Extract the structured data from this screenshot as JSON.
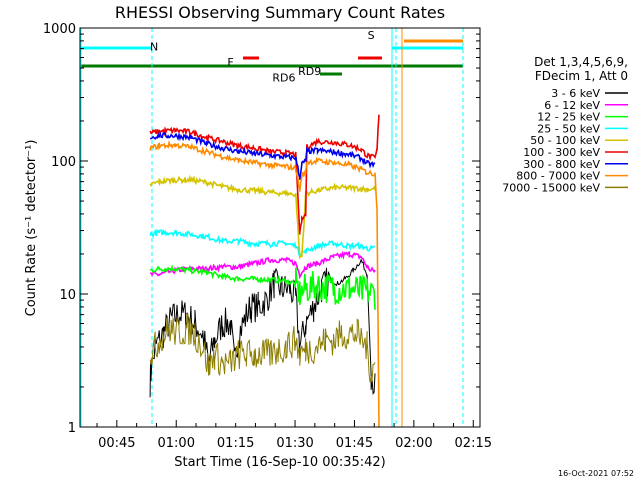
{
  "chart_data": {
    "type": "line",
    "title": "RHESSI Observing Summary Count Rates",
    "xlabel": "Start Time (16-Sep-10 00:35:42)",
    "ylabel": "Count Rate (s⁻¹ detector⁻¹)",
    "x_unit": "minutes since 00:35:42",
    "xlim": [
      0,
      101
    ],
    "ylim": [
      1,
      1000
    ],
    "y_scale": "log",
    "grid": false,
    "legend_position": "right",
    "x_ticks": [
      {
        "label": "00:45",
        "x": 9.3
      },
      {
        "label": "01:00",
        "x": 24.3
      },
      {
        "label": "01:15",
        "x": 39.3
      },
      {
        "label": "01:30",
        "x": 54.3
      },
      {
        "label": "01:45",
        "x": 69.3
      },
      {
        "label": "02:00",
        "x": 84.3
      },
      {
        "label": "02:15",
        "x": 99.3
      }
    ],
    "y_ticks": [
      {
        "label": "1",
        "value": 1
      },
      {
        "label": "10",
        "value": 10
      },
      {
        "label": "100",
        "value": 100
      },
      {
        "label": "1000",
        "value": 1000
      }
    ],
    "legend_header": [
      "Det 1,3,4,5,6,9,",
      "FDecim 1, Att 0"
    ],
    "series": [
      {
        "name": "3 - 6 keV",
        "color": "#000000",
        "points": [
          [
            17.7,
            2.2
          ],
          [
            17.9,
            2.6
          ],
          [
            19,
            4
          ],
          [
            21,
            5
          ],
          [
            23,
            6.5
          ],
          [
            25,
            7
          ],
          [
            27,
            7
          ],
          [
            29,
            6
          ],
          [
            31,
            5
          ],
          [
            32.5,
            3
          ],
          [
            34,
            4.5
          ],
          [
            36,
            6
          ],
          [
            38,
            6
          ],
          [
            39,
            3
          ],
          [
            40,
            5
          ],
          [
            43,
            8
          ],
          [
            45,
            8
          ],
          [
            47,
            9
          ],
          [
            49,
            12
          ],
          [
            51,
            11
          ],
          [
            53,
            11
          ],
          [
            54.5,
            9
          ],
          [
            55.5,
            4
          ],
          [
            57,
            6
          ],
          [
            59,
            8
          ],
          [
            61,
            11
          ],
          [
            63,
            13
          ],
          [
            65,
            12
          ],
          [
            67,
            13
          ],
          [
            69,
            15
          ],
          [
            71,
            18
          ],
          [
            72.5,
            14
          ],
          [
            73.5,
            2.5
          ],
          [
            74.5,
            2
          ]
        ]
      },
      {
        "name": "6 - 12 keV",
        "color": "#ff00ff",
        "points": [
          [
            17.7,
            14
          ],
          [
            20,
            14
          ],
          [
            24,
            15
          ],
          [
            28,
            15.5
          ],
          [
            32,
            15.5
          ],
          [
            36,
            16
          ],
          [
            40,
            16
          ],
          [
            44,
            17
          ],
          [
            48,
            18
          ],
          [
            52,
            18
          ],
          [
            54.5,
            17
          ],
          [
            55.5,
            14
          ],
          [
            57,
            16
          ],
          [
            60,
            17
          ],
          [
            64,
            19
          ],
          [
            68,
            20
          ],
          [
            71,
            19
          ],
          [
            72.5,
            16
          ],
          [
            73.5,
            15
          ],
          [
            74.5,
            15
          ]
        ]
      },
      {
        "name": "12 - 25 keV",
        "color": "#00ff00",
        "points": [
          [
            17.7,
            15
          ],
          [
            20,
            15.5
          ],
          [
            24,
            15.5
          ],
          [
            28,
            15
          ],
          [
            32,
            14.5
          ],
          [
            36,
            13.5
          ],
          [
            40,
            13
          ],
          [
            44,
            13
          ],
          [
            48,
            12.8
          ],
          [
            52,
            12.5
          ],
          [
            54.5,
            12
          ],
          [
            55.5,
            10
          ],
          [
            57,
            11
          ],
          [
            60,
            11.5
          ],
          [
            64,
            11
          ],
          [
            68,
            11
          ],
          [
            71,
            10.5
          ],
          [
            72.5,
            10.5
          ],
          [
            74.5,
            10
          ]
        ]
      },
      {
        "name": "25 - 50 keV",
        "color": "#00ffff",
        "points": [
          [
            17.7,
            28
          ],
          [
            20,
            29
          ],
          [
            24,
            29
          ],
          [
            28,
            28
          ],
          [
            32,
            27
          ],
          [
            36,
            25
          ],
          [
            40,
            25
          ],
          [
            44,
            24
          ],
          [
            48,
            24
          ],
          [
            52,
            24
          ],
          [
            54.5,
            23
          ],
          [
            55.5,
            20
          ],
          [
            57,
            21
          ],
          [
            60,
            23
          ],
          [
            64,
            24
          ],
          [
            68,
            23
          ],
          [
            71,
            23
          ],
          [
            72.5,
            22
          ],
          [
            74.5,
            22
          ]
        ]
      },
      {
        "name": "50 - 100 keV",
        "color": "#d4c400",
        "points": [
          [
            17.7,
            66
          ],
          [
            20,
            70
          ],
          [
            24,
            72
          ],
          [
            28,
            72
          ],
          [
            32,
            69
          ],
          [
            36,
            64
          ],
          [
            40,
            61
          ],
          [
            44,
            60
          ],
          [
            48,
            58
          ],
          [
            52,
            57
          ],
          [
            54.5,
            56
          ],
          [
            55.5,
            19
          ],
          [
            56,
            19
          ],
          [
            57,
            57
          ],
          [
            60,
            60
          ],
          [
            64,
            63
          ],
          [
            68,
            63
          ],
          [
            71,
            62
          ],
          [
            72.5,
            61
          ],
          [
            74.5,
            62
          ]
        ]
      },
      {
        "name": "100 - 300 keV",
        "color": "#ee0000",
        "points": [
          [
            17.7,
            162
          ],
          [
            20,
            167
          ],
          [
            24,
            170
          ],
          [
            28,
            165
          ],
          [
            32,
            150
          ],
          [
            36,
            140
          ],
          [
            40,
            130
          ],
          [
            44,
            125
          ],
          [
            48,
            118
          ],
          [
            52,
            115
          ],
          [
            54.5,
            112
          ],
          [
            55.5,
            28
          ],
          [
            56,
            36
          ],
          [
            57,
            40
          ],
          [
            57.3,
            128
          ],
          [
            60,
            140
          ],
          [
            64,
            138
          ],
          [
            68,
            132
          ],
          [
            71,
            122
          ],
          [
            72.5,
            110
          ],
          [
            74.5,
            105
          ],
          [
            75,
            120
          ],
          [
            75.5,
            230
          ]
        ]
      },
      {
        "name": "300 - 800 keV",
        "color": "#0000ee",
        "points": [
          [
            17.7,
            150
          ],
          [
            20,
            155
          ],
          [
            24,
            155
          ],
          [
            28,
            150
          ],
          [
            32,
            135
          ],
          [
            36,
            125
          ],
          [
            40,
            118
          ],
          [
            44,
            114
          ],
          [
            48,
            110
          ],
          [
            52,
            107
          ],
          [
            54.5,
            105
          ],
          [
            55.5,
            75
          ],
          [
            56,
            95
          ],
          [
            57,
            100
          ],
          [
            57.3,
            118
          ],
          [
            60,
            120
          ],
          [
            64,
            117
          ],
          [
            68,
            112
          ],
          [
            71,
            105
          ],
          [
            72.5,
            96
          ],
          [
            74.5,
            93
          ]
        ]
      },
      {
        "name": "800 - 7000 keV",
        "color": "#ff8c00",
        "points": [
          [
            17.7,
            125
          ],
          [
            20,
            130
          ],
          [
            24,
            132
          ],
          [
            28,
            127
          ],
          [
            32,
            117
          ],
          [
            36,
            108
          ],
          [
            40,
            101
          ],
          [
            44,
            97
          ],
          [
            48,
            93
          ],
          [
            52,
            91
          ],
          [
            54.5,
            88
          ],
          [
            55.5,
            60
          ],
          [
            56,
            78
          ],
          [
            57,
            82
          ],
          [
            57.3,
            98
          ],
          [
            60,
            100
          ],
          [
            64,
            97
          ],
          [
            68,
            93
          ],
          [
            71,
            87
          ],
          [
            72.5,
            82
          ],
          [
            74.5,
            80
          ],
          [
            75,
            45
          ],
          [
            75.5,
            1
          ]
        ]
      },
      {
        "name": "7000 - 15000 keV",
        "color": "#8b7d00",
        "points": [
          [
            17.7,
            3.5
          ],
          [
            19,
            4
          ],
          [
            21,
            5
          ],
          [
            23,
            5.5
          ],
          [
            25,
            5
          ],
          [
            27,
            5.5
          ],
          [
            29,
            5
          ],
          [
            31,
            4
          ],
          [
            32.5,
            2.8
          ],
          [
            34,
            3.5
          ],
          [
            36,
            3
          ],
          [
            38,
            3
          ],
          [
            40,
            3.5
          ],
          [
            42,
            3.5
          ],
          [
            44,
            3.5
          ],
          [
            46,
            3.5
          ],
          [
            48,
            3.5
          ],
          [
            50,
            3.8
          ],
          [
            52,
            4
          ],
          [
            54.5,
            4.5
          ],
          [
            55.5,
            3.5
          ],
          [
            57,
            3.8
          ],
          [
            60,
            4
          ],
          [
            62,
            4.5
          ],
          [
            64,
            4.5
          ],
          [
            66,
            5
          ],
          [
            68,
            5
          ],
          [
            70,
            5
          ],
          [
            72.5,
            4
          ],
          [
            73.5,
            2.5
          ],
          [
            74.5,
            3
          ]
        ]
      }
    ],
    "annotations": [
      {
        "text": "N",
        "x": 18.7,
        "value": 680,
        "color": "#00ffff"
      },
      {
        "text": "F",
        "x": 38,
        "value": 520,
        "color": "#ee0000"
      },
      {
        "text": "RD9",
        "x": 58,
        "value": 445,
        "color": "#007a00"
      },
      {
        "text": "RD6",
        "x": 51.5,
        "value": 395,
        "color": "#007a00"
      },
      {
        "text": "S",
        "x": 73.5,
        "value": 830,
        "color": "#ff8c00"
      }
    ],
    "timestamp": "16-Oct-2021 07:52"
  }
}
